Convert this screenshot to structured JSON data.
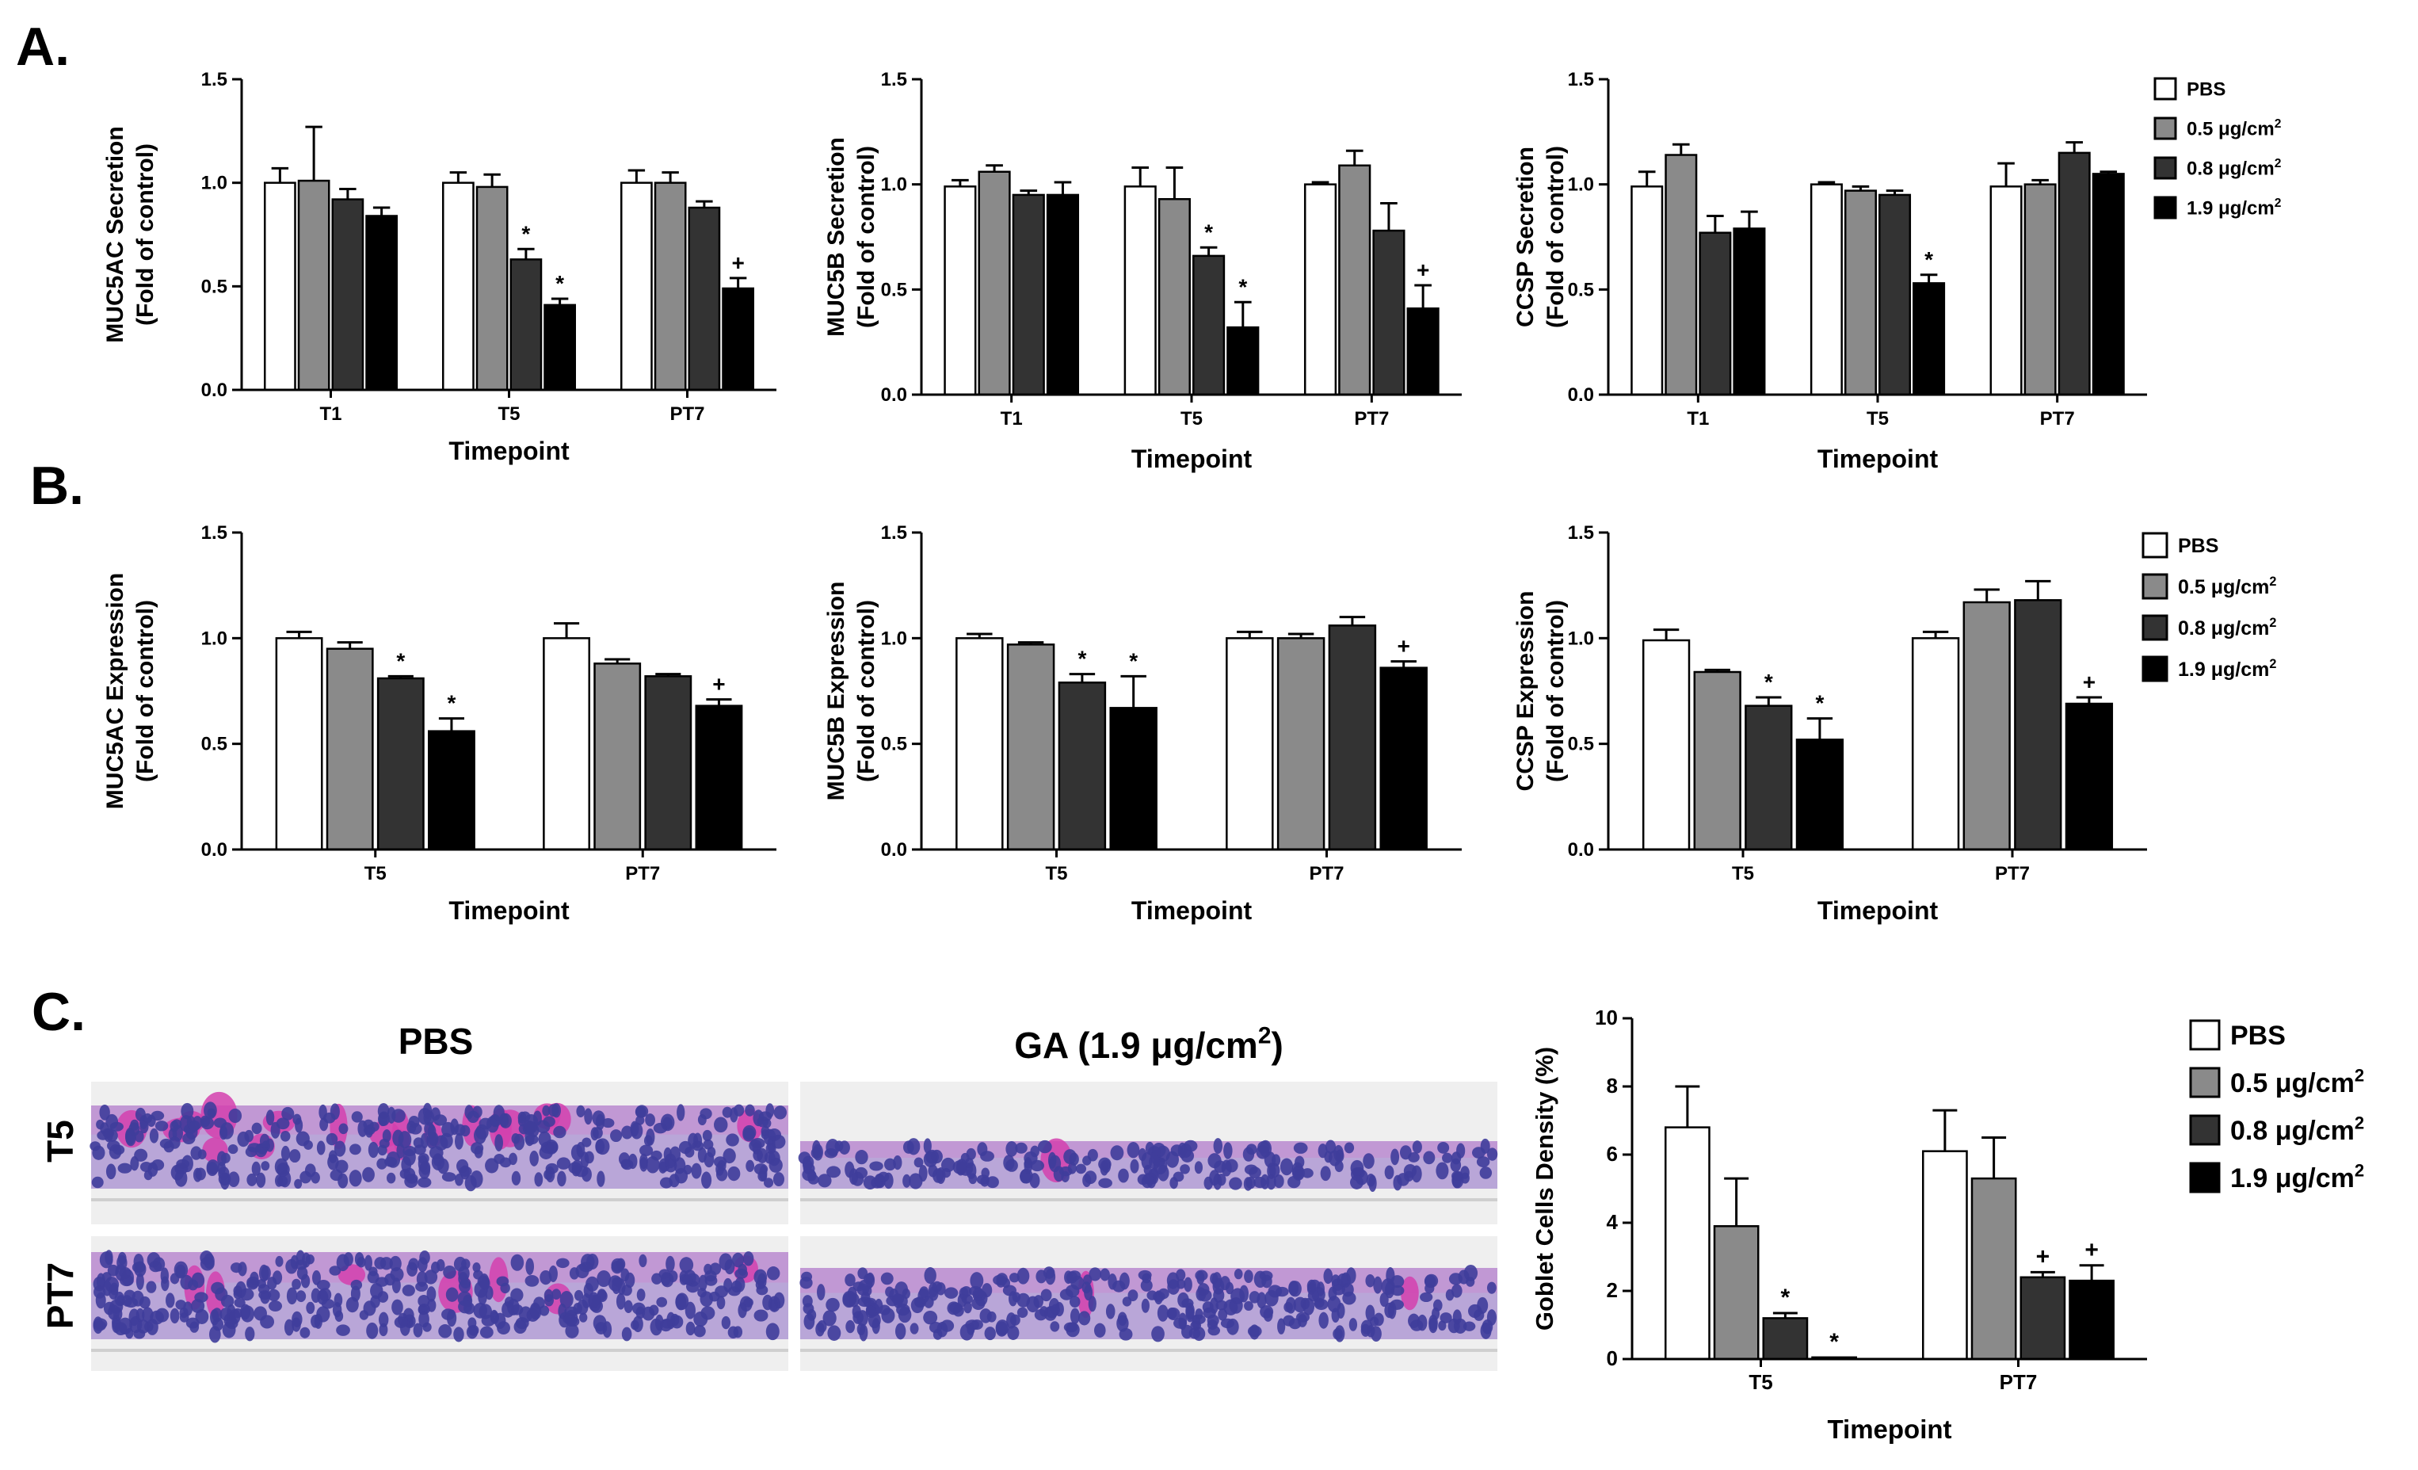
{
  "panel_letters": [
    "A.",
    "B.",
    "C."
  ],
  "colors": {
    "PBS": "#ffffff",
    "0.5": "#8a8a8a",
    "0.8": "#333333",
    "1.9": "#000000",
    "stain_pink": "#d43fae",
    "stain_purple": "#7c4fb5",
    "nucleus": "#3f3d9b"
  },
  "legend": {
    "entries": [
      {
        "label": "PBS",
        "unit": "",
        "sup": ""
      },
      {
        "label": "0.5 μg/cm",
        "unit": "",
        "sup": "2"
      },
      {
        "label": "0.8 μg/cm",
        "unit": "",
        "sup": "2"
      },
      {
        "label": "1.9 μg/cm",
        "unit": "",
        "sup": "2"
      }
    ]
  },
  "histology": {
    "col_titles": [
      {
        "text": "PBS",
        "sup": ""
      },
      {
        "text": "GA (1.9 μg/cm",
        "sup": "2",
        "tail": ")"
      }
    ],
    "row_labels": [
      "T5",
      "PT7"
    ]
  },
  "chart_data": [
    {
      "type": "bar",
      "panel": "A",
      "ylabel": [
        "MUC5AC Secretion",
        "(Fold of control)"
      ],
      "xlabel": "Timepoint",
      "ylim": [
        0,
        1.5
      ],
      "yticks": [
        "0.0",
        "0.5",
        "1.0",
        "1.5"
      ],
      "categories": [
        "T1",
        "T5",
        "PT7"
      ],
      "series": [
        {
          "name": "PBS",
          "values": [
            1.0,
            1.0,
            1.0
          ],
          "err": [
            0.07,
            0.05,
            0.06
          ]
        },
        {
          "name": "0.5 μg/cm2",
          "values": [
            1.01,
            0.98,
            1.0
          ],
          "err": [
            0.26,
            0.06,
            0.05
          ]
        },
        {
          "name": "0.8 μg/cm2",
          "values": [
            0.92,
            0.63,
            0.88
          ],
          "err": [
            0.05,
            0.05,
            0.03
          ]
        },
        {
          "name": "1.9 μg/cm2",
          "values": [
            0.84,
            0.41,
            0.49
          ],
          "err": [
            0.04,
            0.03,
            0.05
          ]
        }
      ],
      "sig": [
        [
          "",
          "",
          "",
          ""
        ],
        [
          "",
          "",
          "*",
          "*"
        ],
        [
          "",
          "",
          "",
          "+"
        ]
      ]
    },
    {
      "type": "bar",
      "panel": "A",
      "ylabel": [
        "MUC5B Secretion",
        "(Fold of control)"
      ],
      "xlabel": "Timepoint",
      "ylim": [
        0,
        1.5
      ],
      "yticks": [
        "0.0",
        "0.5",
        "1.0",
        "1.5"
      ],
      "categories": [
        "T1",
        "T5",
        "PT7"
      ],
      "series": [
        {
          "name": "PBS",
          "values": [
            0.99,
            0.99,
            1.0
          ],
          "err": [
            0.03,
            0.09,
            0.01
          ]
        },
        {
          "name": "0.5 μg/cm2",
          "values": [
            1.06,
            0.93,
            1.09
          ],
          "err": [
            0.03,
            0.15,
            0.07
          ]
        },
        {
          "name": "0.8 μg/cm2",
          "values": [
            0.95,
            0.66,
            0.78
          ],
          "err": [
            0.02,
            0.04,
            0.13
          ]
        },
        {
          "name": "1.9 μg/cm2",
          "values": [
            0.95,
            0.32,
            0.41
          ],
          "err": [
            0.06,
            0.12,
            0.11
          ]
        }
      ],
      "sig": [
        [
          "",
          "",
          "",
          ""
        ],
        [
          "",
          "",
          "*",
          "*"
        ],
        [
          "",
          "",
          "",
          "+"
        ]
      ]
    },
    {
      "type": "bar",
      "panel": "A",
      "ylabel": [
        "CCSP Secretion",
        "(Fold of control)"
      ],
      "xlabel": "Timepoint",
      "ylim": [
        0,
        1.5
      ],
      "yticks": [
        "0.0",
        "0.5",
        "1.0",
        "1.5"
      ],
      "categories": [
        "T1",
        "T5",
        "PT7"
      ],
      "series": [
        {
          "name": "PBS",
          "values": [
            0.99,
            1.0,
            0.99
          ],
          "err": [
            0.07,
            0.01,
            0.11
          ]
        },
        {
          "name": "0.5 μg/cm2",
          "values": [
            1.14,
            0.97,
            1.0
          ],
          "err": [
            0.05,
            0.02,
            0.02
          ]
        },
        {
          "name": "0.8 μg/cm2",
          "values": [
            0.77,
            0.95,
            1.15
          ],
          "err": [
            0.08,
            0.02,
            0.05
          ]
        },
        {
          "name": "1.9 μg/cm2",
          "values": [
            0.79,
            0.53,
            1.05
          ],
          "err": [
            0.08,
            0.04,
            0.01
          ]
        }
      ],
      "sig": [
        [
          "",
          "",
          "",
          ""
        ],
        [
          "",
          "",
          "",
          "*"
        ],
        [
          "",
          "",
          "",
          ""
        ]
      ]
    },
    {
      "type": "bar",
      "panel": "B",
      "ylabel": [
        "MUC5AC Expression",
        "(Fold of control)"
      ],
      "xlabel": "Timepoint",
      "ylim": [
        0,
        1.5
      ],
      "yticks": [
        "0.0",
        "0.5",
        "1.0",
        "1.5"
      ],
      "categories": [
        "T5",
        "PT7"
      ],
      "series": [
        {
          "name": "PBS",
          "values": [
            1.0,
            1.0
          ],
          "err": [
            0.03,
            0.07
          ]
        },
        {
          "name": "0.5 μg/cm2",
          "values": [
            0.95,
            0.88
          ],
          "err": [
            0.03,
            0.02
          ]
        },
        {
          "name": "0.8 μg/cm2",
          "values": [
            0.81,
            0.82
          ],
          "err": [
            0.01,
            0.01
          ]
        },
        {
          "name": "1.9 μg/cm2",
          "values": [
            0.56,
            0.68
          ],
          "err": [
            0.06,
            0.03
          ]
        }
      ],
      "sig": [
        [
          "",
          "",
          "*",
          "*"
        ],
        [
          "",
          "",
          "",
          "+"
        ]
      ]
    },
    {
      "type": "bar",
      "panel": "B",
      "ylabel": [
        "MUC5B Expression",
        "(Fold of control)"
      ],
      "xlabel": "Timepoint",
      "ylim": [
        0,
        1.5
      ],
      "yticks": [
        "0.0",
        "0.5",
        "1.0",
        "1.5"
      ],
      "categories": [
        "T5",
        "PT7"
      ],
      "series": [
        {
          "name": "PBS",
          "values": [
            1.0,
            1.0
          ],
          "err": [
            0.02,
            0.03
          ]
        },
        {
          "name": "0.5 μg/cm2",
          "values": [
            0.97,
            1.0
          ],
          "err": [
            0.01,
            0.02
          ]
        },
        {
          "name": "0.8 μg/cm2",
          "values": [
            0.79,
            1.06
          ],
          "err": [
            0.04,
            0.04
          ]
        },
        {
          "name": "1.9 μg/cm2",
          "values": [
            0.67,
            0.86
          ],
          "err": [
            0.15,
            0.03
          ]
        }
      ],
      "sig": [
        [
          "",
          "",
          "*",
          "*"
        ],
        [
          "",
          "",
          "",
          "+"
        ]
      ]
    },
    {
      "type": "bar",
      "panel": "B",
      "ylabel": [
        "CCSP Expression",
        "(Fold of control)"
      ],
      "xlabel": "Timepoint",
      "ylim": [
        0,
        1.5
      ],
      "yticks": [
        "0.0",
        "0.5",
        "1.0",
        "1.5"
      ],
      "categories": [
        "T5",
        "PT7"
      ],
      "series": [
        {
          "name": "PBS",
          "values": [
            0.99,
            1.0
          ],
          "err": [
            0.05,
            0.03
          ]
        },
        {
          "name": "0.5 μg/cm2",
          "values": [
            0.84,
            1.17
          ],
          "err": [
            0.01,
            0.06
          ]
        },
        {
          "name": "0.8 μg/cm2",
          "values": [
            0.68,
            1.18
          ],
          "err": [
            0.04,
            0.09
          ]
        },
        {
          "name": "1.9 μg/cm2",
          "values": [
            0.52,
            0.69
          ],
          "err": [
            0.1,
            0.03
          ]
        }
      ],
      "sig": [
        [
          "",
          "",
          "*",
          "*"
        ],
        [
          "",
          "",
          "",
          "+"
        ]
      ]
    },
    {
      "type": "bar",
      "panel": "C",
      "ylabel": [
        "Goblet Cells Density (%)"
      ],
      "xlabel": "Timepoint",
      "ylim": [
        0,
        10
      ],
      "yticks": [
        "0",
        "2",
        "4",
        "6",
        "8",
        "10"
      ],
      "categories": [
        "T5",
        "PT7"
      ],
      "series": [
        {
          "name": "PBS",
          "values": [
            6.8,
            6.1
          ],
          "err": [
            1.2,
            1.2
          ]
        },
        {
          "name": "0.5 μg/cm2",
          "values": [
            3.9,
            5.3
          ],
          "err": [
            1.4,
            1.2
          ]
        },
        {
          "name": "0.8 μg/cm2",
          "values": [
            1.2,
            2.4
          ],
          "err": [
            0.15,
            0.15
          ]
        },
        {
          "name": "1.9 μg/cm2",
          "values": [
            0.05,
            2.3
          ],
          "err": [
            0.0,
            0.45
          ]
        }
      ],
      "sig": [
        [
          "",
          "",
          "*",
          "*"
        ],
        [
          "",
          "",
          "+",
          "+"
        ]
      ]
    }
  ]
}
